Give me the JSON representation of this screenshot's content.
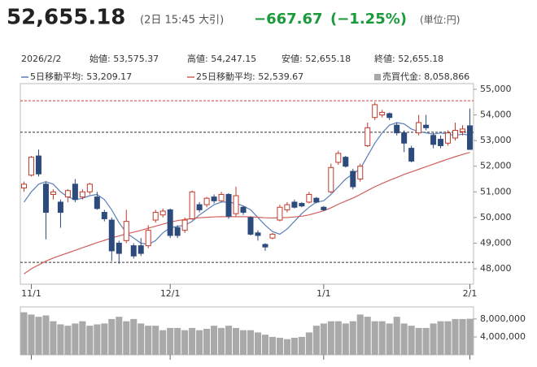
{
  "header": {
    "price": "52,655.18",
    "time": "(2日 15:45 大引)",
    "change": "−667.67",
    "change_pct": "(−1.25%)",
    "unit": "(単位:円)"
  },
  "info": {
    "date": "2026/2/2",
    "open": "始値: 53,575.37",
    "high": "高値: 54,247.15",
    "low": "安値: 52,655.18",
    "close": "終値: 52,655.18"
  },
  "chart_data": [
    {
      "type": "candlestick",
      "up_color": "#c0392b",
      "down_color": "#2d4a7c",
      "categories": [
        null,
        "11/1",
        null,
        null,
        null,
        null,
        null,
        null,
        null,
        null,
        null,
        null,
        null,
        null,
        null,
        null,
        null,
        null,
        null,
        null,
        "12/1",
        null,
        null,
        null,
        null,
        null,
        null,
        null,
        null,
        null,
        null,
        null,
        null,
        null,
        null,
        null,
        null,
        null,
        null,
        null,
        null,
        "1/1",
        null,
        null,
        null,
        null,
        null,
        null,
        null,
        null,
        null,
        null,
        null,
        null,
        null,
        null,
        null,
        null,
        null,
        null,
        null,
        "2/1"
      ],
      "open": [
        51150,
        51650,
        52400,
        51300,
        50900,
        50600,
        50800,
        51300,
        50800,
        51000,
        50800,
        50200,
        49900,
        49000,
        49100,
        48900,
        48900,
        48900,
        49900,
        50100,
        50300,
        49600,
        49500,
        49950,
        50500,
        50500,
        50800,
        50650,
        50900,
        50150,
        50400,
        50000,
        49400,
        48950,
        49200,
        49900,
        50300,
        50600,
        50550,
        50600,
        50750,
        50400,
        51000,
        52150,
        52350,
        51800,
        51500,
        52800,
        53900,
        54000,
        54050,
        53600,
        53300,
        52700,
        53300,
        53600,
        53200,
        53050,
        52900,
        53100,
        53350,
        53575.37
      ],
      "high": [
        51400,
        52400,
        52650,
        51400,
        51100,
        50700,
        51100,
        51500,
        51100,
        51350,
        51000,
        50300,
        50000,
        49100,
        50300,
        49000,
        49200,
        49700,
        50300,
        50350,
        50350,
        49700,
        50000,
        51050,
        50600,
        50800,
        50900,
        51000,
        50950,
        51200,
        50450,
        50050,
        49500,
        49000,
        49400,
        50500,
        50600,
        50700,
        50600,
        51000,
        50800,
        50450,
        52100,
        52600,
        52400,
        51900,
        52100,
        53700,
        54500,
        54200,
        54100,
        53700,
        53400,
        52800,
        54000,
        54000,
        53300,
        53200,
        53400,
        53700,
        53600,
        54247.15
      ],
      "low": [
        51000,
        51600,
        51600,
        49150,
        50700,
        49600,
        50600,
        50600,
        50700,
        50900,
        50300,
        49850,
        48300,
        48200,
        49000,
        48400,
        48500,
        48800,
        49800,
        50000,
        49200,
        49200,
        49400,
        49900,
        50200,
        50400,
        50550,
        50600,
        49950,
        50050,
        50100,
        49300,
        49100,
        48700,
        49150,
        49850,
        50200,
        50350,
        50400,
        50550,
        50550,
        50250,
        50950,
        52050,
        51950,
        51100,
        51400,
        52750,
        53800,
        53900,
        53800,
        53200,
        52550,
        52150,
        53200,
        53400,
        52700,
        52700,
        52800,
        53000,
        53200,
        52655.18
      ],
      "close": [
        51300,
        52350,
        51700,
        50200,
        51000,
        50200,
        51050,
        50700,
        51000,
        51300,
        50350,
        49950,
        48700,
        48600,
        49850,
        48500,
        48600,
        49500,
        50200,
        50250,
        49300,
        49300,
        49900,
        51000,
        50300,
        50750,
        50650,
        50900,
        50050,
        50850,
        50200,
        49350,
        49300,
        48850,
        49350,
        50400,
        50500,
        50400,
        50450,
        50900,
        50600,
        50300,
        51950,
        52500,
        52000,
        51200,
        52000,
        53500,
        54400,
        54100,
        53900,
        53300,
        52900,
        52200,
        53700,
        53500,
        52850,
        52800,
        53300,
        53400,
        53450,
        52655.18
      ],
      "series": [
        {
          "name": "5日移動平均: 53,209.17",
          "color": "#5b7fb8",
          "values": [
            50600,
            51000,
            51300,
            51400,
            51300,
            51000,
            50800,
            50700,
            50750,
            50850,
            50900,
            50700,
            50300,
            49800,
            49400,
            49200,
            49000,
            48950,
            49100,
            49400,
            49600,
            49650,
            49700,
            49850,
            50100,
            50300,
            50500,
            50600,
            50600,
            50550,
            50450,
            50300,
            50000,
            49700,
            49450,
            49350,
            49550,
            49850,
            50150,
            50400,
            50600,
            50650,
            50900,
            51200,
            51500,
            51700,
            51900,
            52400,
            52900,
            53300,
            53600,
            53700,
            53650,
            53450,
            53350,
            53300,
            53250,
            53300,
            53250,
            53200,
            53250,
            53209.17
          ]
        },
        {
          "name": "25日移動平均: 52,539.67",
          "color": "#d0605c",
          "values": [
            47800,
            48000,
            48150,
            48300,
            48420,
            48520,
            48620,
            48720,
            48820,
            48920,
            49020,
            49110,
            49200,
            49280,
            49360,
            49430,
            49500,
            49580,
            49660,
            49740,
            49820,
            49880,
            49920,
            49960,
            49990,
            50010,
            50020,
            50030,
            50030,
            50030,
            50030,
            50020,
            50010,
            49990,
            49980,
            49990,
            50000,
            50020,
            50050,
            50100,
            50180,
            50260,
            50380,
            50520,
            50640,
            50760,
            50900,
            51050,
            51200,
            51330,
            51450,
            51560,
            51680,
            51780,
            51880,
            51980,
            52080,
            52180,
            52280,
            52370,
            52460,
            52539.67
          ]
        }
      ],
      "reference_lines": [
        {
          "value": 54550,
          "color": "#d04040"
        },
        {
          "value": 53322.85,
          "color": "#333333"
        },
        {
          "value": 48250,
          "color": "#333333"
        }
      ],
      "ylim": [
        47400,
        55220
      ],
      "yticks": [
        {
          "value": 48000,
          "label": "48,000"
        },
        {
          "value": 49000,
          "label": "49,000"
        },
        {
          "value": 50000,
          "label": "50,000"
        },
        {
          "value": 51000,
          "label": "51,000"
        },
        {
          "value": 52000,
          "label": "52,000"
        },
        {
          "value": 53000,
          "label": "53,000"
        },
        {
          "value": 54000,
          "label": "54,000"
        },
        {
          "value": 55000,
          "label": "55,000"
        }
      ]
    },
    {
      "type": "bar",
      "name": "売買代金: 8,058,866",
      "color": "#a9a9a9",
      "values": [
        9500000,
        9000000,
        8500000,
        8800000,
        7500000,
        6800000,
        6500000,
        7000000,
        7500000,
        6500000,
        6800000,
        7000000,
        8000000,
        8500000,
        7500000,
        8000000,
        7000000,
        6500000,
        6500000,
        5500000,
        6000000,
        6000000,
        5500000,
        6000000,
        5500000,
        5800000,
        6500000,
        6000000,
        6500000,
        6000000,
        5500000,
        5500000,
        5000000,
        4500000,
        4000000,
        3800000,
        3500000,
        3800000,
        4000000,
        5000000,
        6500000,
        7000000,
        7500000,
        7500000,
        7000000,
        7500000,
        9000000,
        8500000,
        7500000,
        7500000,
        7000000,
        8500000,
        7000000,
        6500000,
        6000000,
        6000000,
        7000000,
        7500000,
        7500000,
        8000000,
        8000000,
        8058866
      ],
      "ylim": [
        0,
        10700000
      ],
      "yticks": [
        {
          "value": 4000000,
          "label": "4,000,000"
        },
        {
          "value": 8000000,
          "label": "8,000,000"
        }
      ]
    }
  ]
}
